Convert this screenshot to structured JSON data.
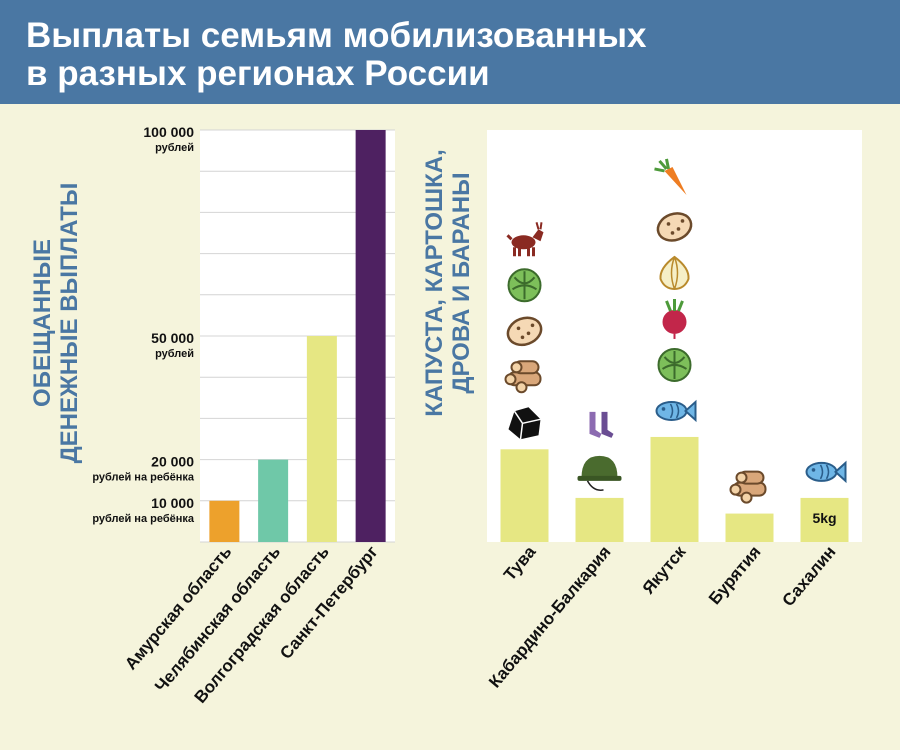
{
  "header": {
    "title_line1": "Выплаты семьям мобилизованных",
    "title_line2": "в разных регионах России"
  },
  "chart_data": [
    {
      "type": "bar",
      "ylabel_line1": "ОБЕЩАННЫЕ",
      "ylabel_line2": "ДЕНЕЖНЫЕ ВЫПЛАТЫ",
      "ylim": [
        0,
        100000
      ],
      "categories": [
        "Амурская область",
        "Челябинская область",
        "Волгоградская область",
        "Санкт-Петербург"
      ],
      "values": [
        10000,
        20000,
        50000,
        100000
      ],
      "colors": [
        "#eda12c",
        "#6fc8a8",
        "#e6e783",
        "#4e2161"
      ],
      "ticks": [
        {
          "value": 100000,
          "label": "100 000",
          "sub": "рублей"
        },
        {
          "value": 50000,
          "label": "50 000",
          "sub": "рублей"
        },
        {
          "value": 20000,
          "label": "20 000",
          "sub": "рублей на ребёнка"
        },
        {
          "value": 10000,
          "label": "10 000",
          "sub": "рублей на ребёнка"
        }
      ],
      "grid": true
    },
    {
      "type": "bar",
      "ylabel_line1": "КАПУСТА, КАРТОШКА,",
      "ylabel_line2": "ДРОВА И БАРАНЫ",
      "categories": [
        "Тува",
        "Кабардино-Балкария",
        "Якутск",
        "Бурятия",
        "Сахалин"
      ],
      "values": [
        22.5,
        10.7,
        25.5,
        6.9,
        10.7
      ],
      "ylim": [
        0,
        100
      ],
      "bar_color": "#e6e783",
      "annotations": [
        {
          "category": "Сахалин",
          "text": "5kg"
        }
      ],
      "icons": [
        [
          "coal-icon",
          "firewood-icon",
          "potato-icon",
          "cabbage-icon",
          "goat-icon"
        ],
        [
          "helmet-icon",
          "socks-icon"
        ],
        [
          "fish-icon",
          "cabbage-icon",
          "beet-icon",
          "onion-icon",
          "potato-icon",
          "carrot-icon"
        ],
        [
          "firewood-icon"
        ],
        [
          "fish-icon"
        ]
      ]
    }
  ]
}
